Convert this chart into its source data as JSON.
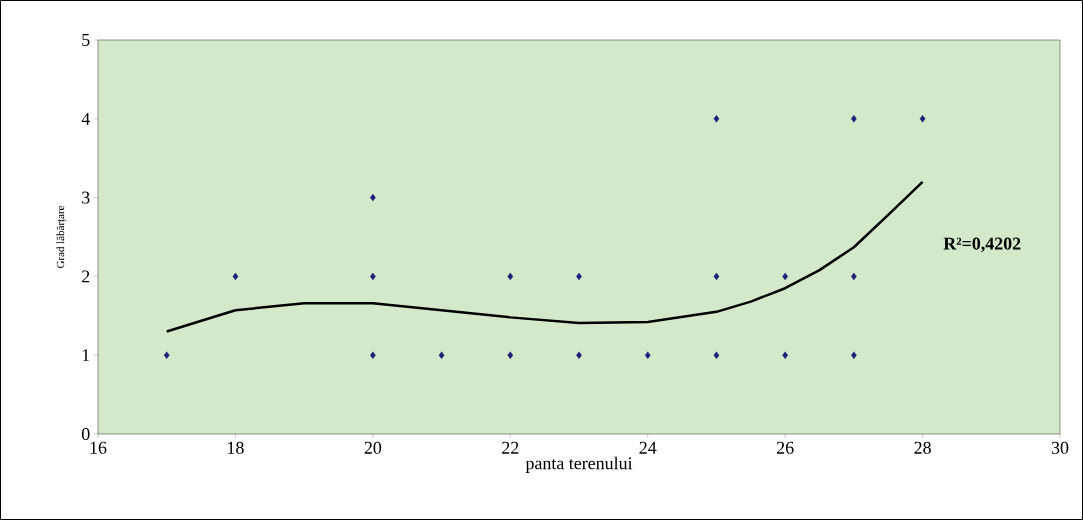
{
  "chart_data": {
    "type": "scatter",
    "xlabel": "panta terenului",
    "ylabel": "Grad lăbărțare",
    "xlim": [
      16,
      30
    ],
    "ylim": [
      0,
      5
    ],
    "xticks": [
      16,
      18,
      20,
      22,
      24,
      26,
      28,
      30
    ],
    "yticks": [
      0,
      1,
      2,
      3,
      4,
      5
    ],
    "grid": false,
    "series": [
      {
        "color": "#1f1f7a",
        "marker": "diamond",
        "x": [
          17,
          18,
          20,
          20,
          20,
          21,
          22,
          22,
          23,
          23,
          24,
          25,
          25,
          25,
          26,
          26,
          27,
          27,
          27,
          28
        ],
        "values": [
          1,
          2,
          3,
          2,
          1,
          1,
          2,
          1,
          2,
          1,
          1,
          4,
          2,
          1,
          2,
          1,
          4,
          2,
          1,
          4
        ]
      },
      {
        "type": "line",
        "color": "#000000",
        "marker": "none",
        "x": [
          17,
          18,
          19,
          20,
          21,
          22,
          23,
          24,
          25,
          25.5,
          26,
          26.5,
          27,
          27.5,
          28
        ],
        "values": [
          1.3,
          1.57,
          1.66,
          1.66,
          1.57,
          1.48,
          1.41,
          1.42,
          1.55,
          1.68,
          1.85,
          2.08,
          2.37,
          2.78,
          3.2
        ]
      }
    ],
    "annotations": [
      "**R²=0,4202**"
    ]
  }
}
